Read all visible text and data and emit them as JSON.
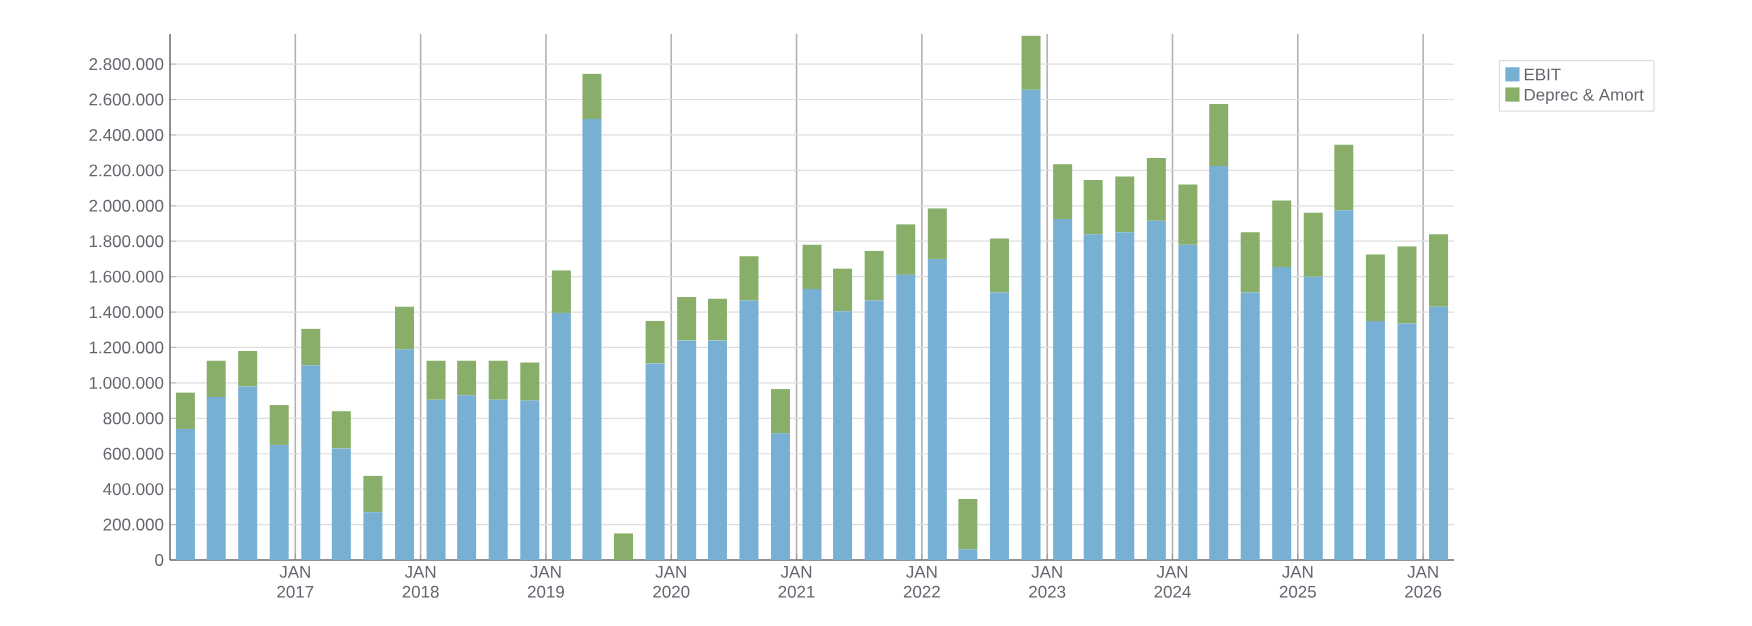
{
  "chart_data": {
    "type": "bar",
    "stacked": true,
    "grid": true,
    "legend": "top right",
    "x": [
      "2016-02-15",
      "2016-05-15",
      "2016-08-15",
      "2016-11-15",
      "2017-02-15",
      "2017-05-15",
      "2017-08-15",
      "2017-11-15",
      "2018-02-15",
      "2018-05-15",
      "2018-08-15",
      "2018-11-15",
      "2019-02-15",
      "2019-05-15",
      "2019-08-15",
      "2019-11-15",
      "2020-02-15",
      "2020-05-15",
      "2020-08-15",
      "2020-11-15",
      "2021-02-15",
      "2021-05-15",
      "2021-08-15",
      "2021-11-15",
      "2022-02-15",
      "2022-05-15",
      "2022-08-15",
      "2022-11-15",
      "2023-02-15",
      "2023-05-15",
      "2023-08-15",
      "2023-11-15",
      "2024-02-15",
      "2024-05-15",
      "2024-08-15",
      "2024-11-15",
      "2025-02-15",
      "2025-05-15",
      "2025-08-15",
      "2025-11-15",
      "2026-02-15"
    ],
    "series": [
      {
        "name": "EBIT",
        "color": "#78b0d3",
        "values": [
          740000,
          920000,
          980000,
          650000,
          1100000,
          630000,
          270000,
          1190000,
          905000,
          930000,
          905000,
          900000,
          1395000,
          2490000,
          0,
          1110000,
          1240000,
          1240000,
          1465000,
          715000,
          1530000,
          1405000,
          1465000,
          1610000,
          1700000,
          60000,
          1510000,
          2655000,
          1925000,
          1840000,
          1850000,
          1915000,
          1780000,
          2225000,
          1510000,
          1655000,
          1600000,
          1975000,
          1350000,
          1335000,
          1430000
        ]
      },
      {
        "name": "Deprec & Amort",
        "color": "#88ae6a",
        "values": [
          205000,
          205000,
          200000,
          225000,
          205000,
          210000,
          205000,
          240000,
          220000,
          195000,
          220000,
          215000,
          240000,
          255000,
          150000,
          240000,
          245000,
          235000,
          250000,
          250000,
          250000,
          240000,
          280000,
          285000,
          285000,
          285000,
          305000,
          305000,
          310000,
          305000,
          315000,
          355000,
          340000,
          350000,
          340000,
          375000,
          360000,
          370000,
          375000,
          435000,
          410000
        ]
      }
    ],
    "xlim": [
      "2016-01-01",
      "2026-04-01"
    ],
    "xticks": [
      {
        "value": "2017-01-01",
        "label": "JAN 2017"
      },
      {
        "value": "2018-01-01",
        "label": "JAN 2018"
      },
      {
        "value": "2019-01-01",
        "label": "JAN 2019"
      },
      {
        "value": "2020-01-01",
        "label": "JAN 2020"
      },
      {
        "value": "2021-01-01",
        "label": "JAN 2021"
      },
      {
        "value": "2022-01-01",
        "label": "JAN 2022"
      },
      {
        "value": "2023-01-01",
        "label": "JAN 2023"
      },
      {
        "value": "2024-01-01",
        "label": "JAN 2024"
      },
      {
        "value": "2025-01-01",
        "label": "JAN 2025"
      },
      {
        "value": "2026-01-01",
        "label": "JAN 2026"
      }
    ],
    "ylim": [
      0,
      2970000
    ],
    "yticks": [
      0,
      {
        "value": 200000,
        "label": "200.000"
      },
      {
        "value": 400000,
        "label": "400.000"
      },
      {
        "value": 600000,
        "label": "600.000"
      },
      {
        "value": 800000,
        "label": "800.000"
      },
      {
        "value": 1000000,
        "label": "1.000.000"
      },
      {
        "value": 1200000,
        "label": "1.200.000"
      },
      {
        "value": 1400000,
        "label": "1.400.000"
      },
      {
        "value": 1600000,
        "label": "1.600.000"
      },
      {
        "value": 1800000,
        "label": "1.800.000"
      },
      {
        "value": 2000000,
        "label": "2.000.000"
      },
      {
        "value": 2200000,
        "label": "2.200.000"
      },
      {
        "value": 2400000,
        "label": "2.400.000"
      },
      {
        "value": 2600000,
        "label": "2.600.000"
      },
      {
        "value": 2800000,
        "label": "2.800.000"
      }
    ]
  }
}
